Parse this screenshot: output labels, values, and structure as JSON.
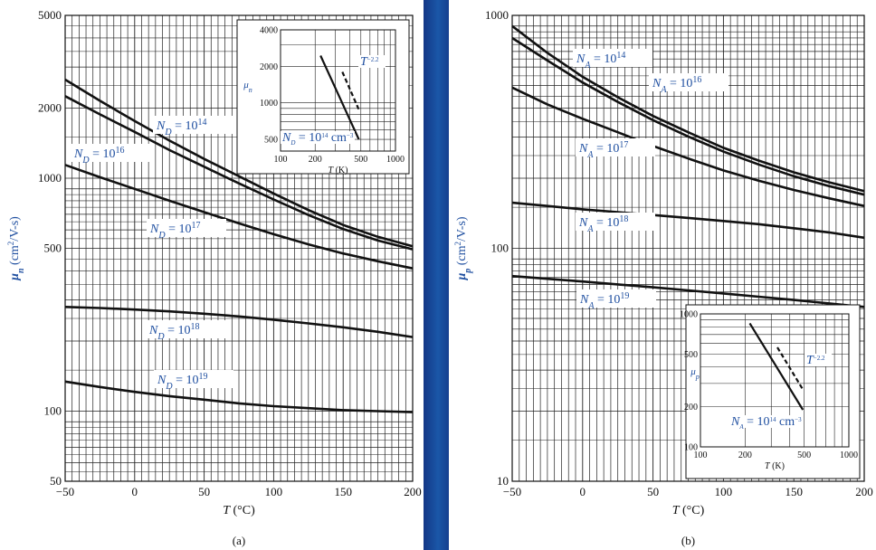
{
  "chart_data": [
    {
      "id": "a",
      "type": "line",
      "caption": "(a)",
      "xlabel": "T (°C)",
      "ylabel": "μn (cm²/V-s)",
      "xlim": [
        -50,
        200
      ],
      "ylim": [
        50,
        5000
      ],
      "yscale": "log",
      "x_ticks": [
        "−50",
        "0",
        "50",
        "100",
        "150",
        "200"
      ],
      "y_ticks": [
        {
          "value": 5000,
          "label": "5000"
        },
        {
          "value": 2000,
          "label": "2000"
        },
        {
          "value": 1000,
          "label": "1000"
        },
        {
          "value": 500,
          "label": "500"
        },
        {
          "value": 100,
          "label": "100"
        },
        {
          "value": 50,
          "label": "50"
        }
      ],
      "grid": true,
      "series": [
        {
          "name": "ND = 10^14",
          "label": {
            "base": "N",
            "sub": "D",
            "rest": " = 10",
            "sup": "14"
          },
          "points": [
            [
              -50,
              2650
            ],
            [
              -25,
              2150
            ],
            [
              0,
              1760
            ],
            [
              25,
              1450
            ],
            [
              50,
              1210
            ],
            [
              75,
              1020
            ],
            [
              100,
              860
            ],
            [
              125,
              730
            ],
            [
              150,
              630
            ],
            [
              175,
              560
            ],
            [
              200,
              510
            ]
          ]
        },
        {
          "name": "ND = 10^16",
          "label": {
            "base": "N",
            "sub": "D",
            "rest": " = 10",
            "sup": "16"
          },
          "points": [
            [
              -50,
              2250
            ],
            [
              -25,
              1880
            ],
            [
              0,
              1580
            ],
            [
              25,
              1320
            ],
            [
              50,
              1120
            ],
            [
              75,
              950
            ],
            [
              100,
              810
            ],
            [
              125,
              695
            ],
            [
              150,
              605
            ],
            [
              175,
              540
            ],
            [
              200,
              495
            ]
          ]
        },
        {
          "name": "ND = 10^17",
          "label": {
            "base": "N",
            "sub": "D",
            "rest": " = 10",
            "sup": "17"
          },
          "points": [
            [
              -50,
              1140
            ],
            [
              -25,
              1010
            ],
            [
              0,
              900
            ],
            [
              25,
              800
            ],
            [
              50,
              715
            ],
            [
              75,
              640
            ],
            [
              100,
              575
            ],
            [
              125,
              520
            ],
            [
              150,
              475
            ],
            [
              175,
              440
            ],
            [
              200,
              410
            ]
          ]
        },
        {
          "name": "ND = 10^18",
          "label": {
            "base": "N",
            "sub": "D",
            "rest": " = 10",
            "sup": "18"
          },
          "points": [
            [
              -50,
              280
            ],
            [
              -25,
              277
            ],
            [
              0,
              273
            ],
            [
              25,
              268
            ],
            [
              50,
              262
            ],
            [
              75,
              255
            ],
            [
              100,
              247
            ],
            [
              125,
              238
            ],
            [
              150,
              229
            ],
            [
              175,
              219
            ],
            [
              200,
              208
            ]
          ]
        },
        {
          "name": "ND = 10^19",
          "label": {
            "base": "N",
            "sub": "D",
            "rest": " = 10",
            "sup": "19"
          },
          "points": [
            [
              -50,
              134
            ],
            [
              -25,
              127
            ],
            [
              0,
              121
            ],
            [
              25,
              116
            ],
            [
              50,
              112
            ],
            [
              75,
              108
            ],
            [
              100,
              105
            ],
            [
              125,
              103
            ],
            [
              150,
              101
            ],
            [
              175,
              100
            ],
            [
              200,
              99
            ]
          ]
        }
      ],
      "inset": {
        "xlabel": "T (K)",
        "ylabel": "μn",
        "xscale": "log",
        "yscale": "log",
        "xlim": [
          100,
          1000
        ],
        "ylim": [
          400,
          4000
        ],
        "x_ticks": [
          "100",
          "200",
          "500",
          "1000"
        ],
        "y_ticks": [
          "4000",
          "2000",
          "1000",
          "500"
        ],
        "y_tick_values": [
          4000,
          2000,
          1000,
          500
        ],
        "x_tick_values": [
          100,
          200,
          500,
          1000
        ],
        "solid_series_label": {
          "base": "N",
          "sub": "D",
          "rest": " = 10",
          "sup": "14",
          "unit": " cm",
          "unit_sup": "−3"
        },
        "solid": [
          [
            223,
            2450
          ],
          [
            480,
            500
          ]
        ],
        "dashed_label": {
          "base": "T",
          "sup": "−2.2"
        },
        "dashed": [
          [
            345,
            1800
          ],
          [
            480,
            880
          ]
        ]
      }
    },
    {
      "id": "b",
      "type": "line",
      "caption": "(b)",
      "xlabel": "T (°C)",
      "ylabel": "μp (cm²/V-s)",
      "xlim": [
        -50,
        200
      ],
      "ylim": [
        10,
        1000
      ],
      "yscale": "log",
      "x_ticks": [
        "−50",
        "0",
        "50",
        "100",
        "150",
        "200"
      ],
      "y_ticks": [
        {
          "value": 1000,
          "label": "1000"
        },
        {
          "value": 100,
          "label": "100"
        },
        {
          "value": 10,
          "label": "10"
        }
      ],
      "grid": true,
      "series": [
        {
          "name": "NA = 10^14",
          "label": {
            "base": "N",
            "sub": "A",
            "rest": " = 10",
            "sup": "14"
          },
          "points": [
            [
              -50,
              900
            ],
            [
              -25,
              690
            ],
            [
              0,
              545
            ],
            [
              25,
              445
            ],
            [
              50,
              370
            ],
            [
              75,
              315
            ],
            [
              100,
              270
            ],
            [
              125,
              238
            ],
            [
              150,
              212
            ],
            [
              175,
              192
            ],
            [
              200,
              176
            ]
          ]
        },
        {
          "name": "NA = 10^16",
          "label": {
            "base": "N",
            "sub": "A",
            "rest": " = 10",
            "sup": "16"
          },
          "points": [
            [
              -50,
              800
            ],
            [
              -25,
              640
            ],
            [
              0,
              515
            ],
            [
              25,
              425
            ],
            [
              50,
              355
            ],
            [
              75,
              302
            ],
            [
              100,
              260
            ],
            [
              125,
              229
            ],
            [
              150,
              204
            ],
            [
              175,
              185
            ],
            [
              200,
              170
            ]
          ]
        },
        {
          "name": "NA = 10^17",
          "label": {
            "base": "N",
            "sub": "A",
            "rest": " = 10",
            "sup": "17"
          },
          "points": [
            [
              -50,
              490
            ],
            [
              -25,
              415
            ],
            [
              0,
              360
            ],
            [
              25,
              315
            ],
            [
              50,
              275
            ],
            [
              75,
              243
            ],
            [
              100,
              216
            ],
            [
              125,
              195
            ],
            [
              150,
              178
            ],
            [
              175,
              164
            ],
            [
              200,
              152
            ]
          ]
        },
        {
          "name": "NA = 10^18",
          "label": {
            "base": "N",
            "sub": "A",
            "rest": " = 10",
            "sup": "18"
          },
          "points": [
            [
              -50,
              157
            ],
            [
              -25,
              152
            ],
            [
              0,
              147
            ],
            [
              25,
              143
            ],
            [
              50,
              139
            ],
            [
              75,
              135
            ],
            [
              100,
              131
            ],
            [
              125,
              127
            ],
            [
              150,
              122
            ],
            [
              175,
              117
            ],
            [
              200,
              111
            ]
          ]
        },
        {
          "name": "NA = 10^19",
          "label": {
            "base": "N",
            "sub": "A",
            "rest": " = 10",
            "sup": "19"
          },
          "points": [
            [
              -50,
              76
            ],
            [
              -25,
              74
            ],
            [
              0,
              72
            ],
            [
              25,
              70
            ],
            [
              50,
              68
            ],
            [
              75,
              66
            ],
            [
              100,
              64
            ],
            [
              125,
              62
            ],
            [
              150,
              60
            ],
            [
              175,
              58
            ],
            [
              200,
              56
            ]
          ]
        }
      ],
      "inset": {
        "xlabel": "T (K)",
        "ylabel": "μp",
        "xscale": "log",
        "yscale": "log",
        "xlim": [
          100,
          1000
        ],
        "ylim": [
          100,
          1000
        ],
        "x_ticks": [
          "100",
          "200",
          "500",
          "1000"
        ],
        "y_ticks": [
          "1000",
          "500",
          "200",
          "100"
        ],
        "y_tick_values": [
          1000,
          500,
          200,
          100
        ],
        "x_tick_values": [
          100,
          200,
          500,
          1000
        ],
        "solid_series_label": {
          "base": "N",
          "sub": "A",
          "rest": " = 10",
          "sup": "14",
          "unit": " cm",
          "unit_sup": "−3"
        },
        "solid": [
          [
            215,
            850
          ],
          [
            490,
            190
          ]
        ],
        "dashed_label": {
          "base": "T",
          "sup": "−2.2"
        },
        "dashed": [
          [
            330,
            560
          ],
          [
            490,
            270
          ]
        ]
      }
    }
  ]
}
